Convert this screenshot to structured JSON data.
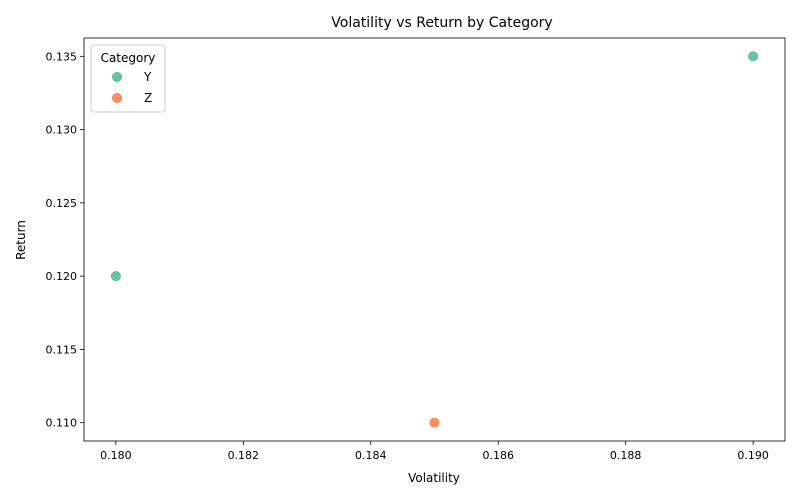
{
  "chart_data": {
    "type": "scatter",
    "title": "Volatility vs Return by Category",
    "xlabel": "Volatility",
    "ylabel": "Return",
    "xlim": [
      0.1795,
      0.1905
    ],
    "ylim": [
      0.10875,
      0.13625
    ],
    "xticks": [
      "0.180",
      "0.182",
      "0.184",
      "0.186",
      "0.188",
      "0.190"
    ],
    "yticks": [
      "0.110",
      "0.115",
      "0.120",
      "0.125",
      "0.130",
      "0.135"
    ],
    "grid": false,
    "legend": {
      "title": "Category",
      "position": "top-left"
    },
    "series": [
      {
        "name": "Y",
        "color": "#66c2a5",
        "points": [
          {
            "x": 0.18,
            "y": 0.12
          },
          {
            "x": 0.19,
            "y": 0.135
          }
        ]
      },
      {
        "name": "Z",
        "color": "#fc8d62",
        "points": [
          {
            "x": 0.185,
            "y": 0.11
          }
        ]
      }
    ]
  }
}
